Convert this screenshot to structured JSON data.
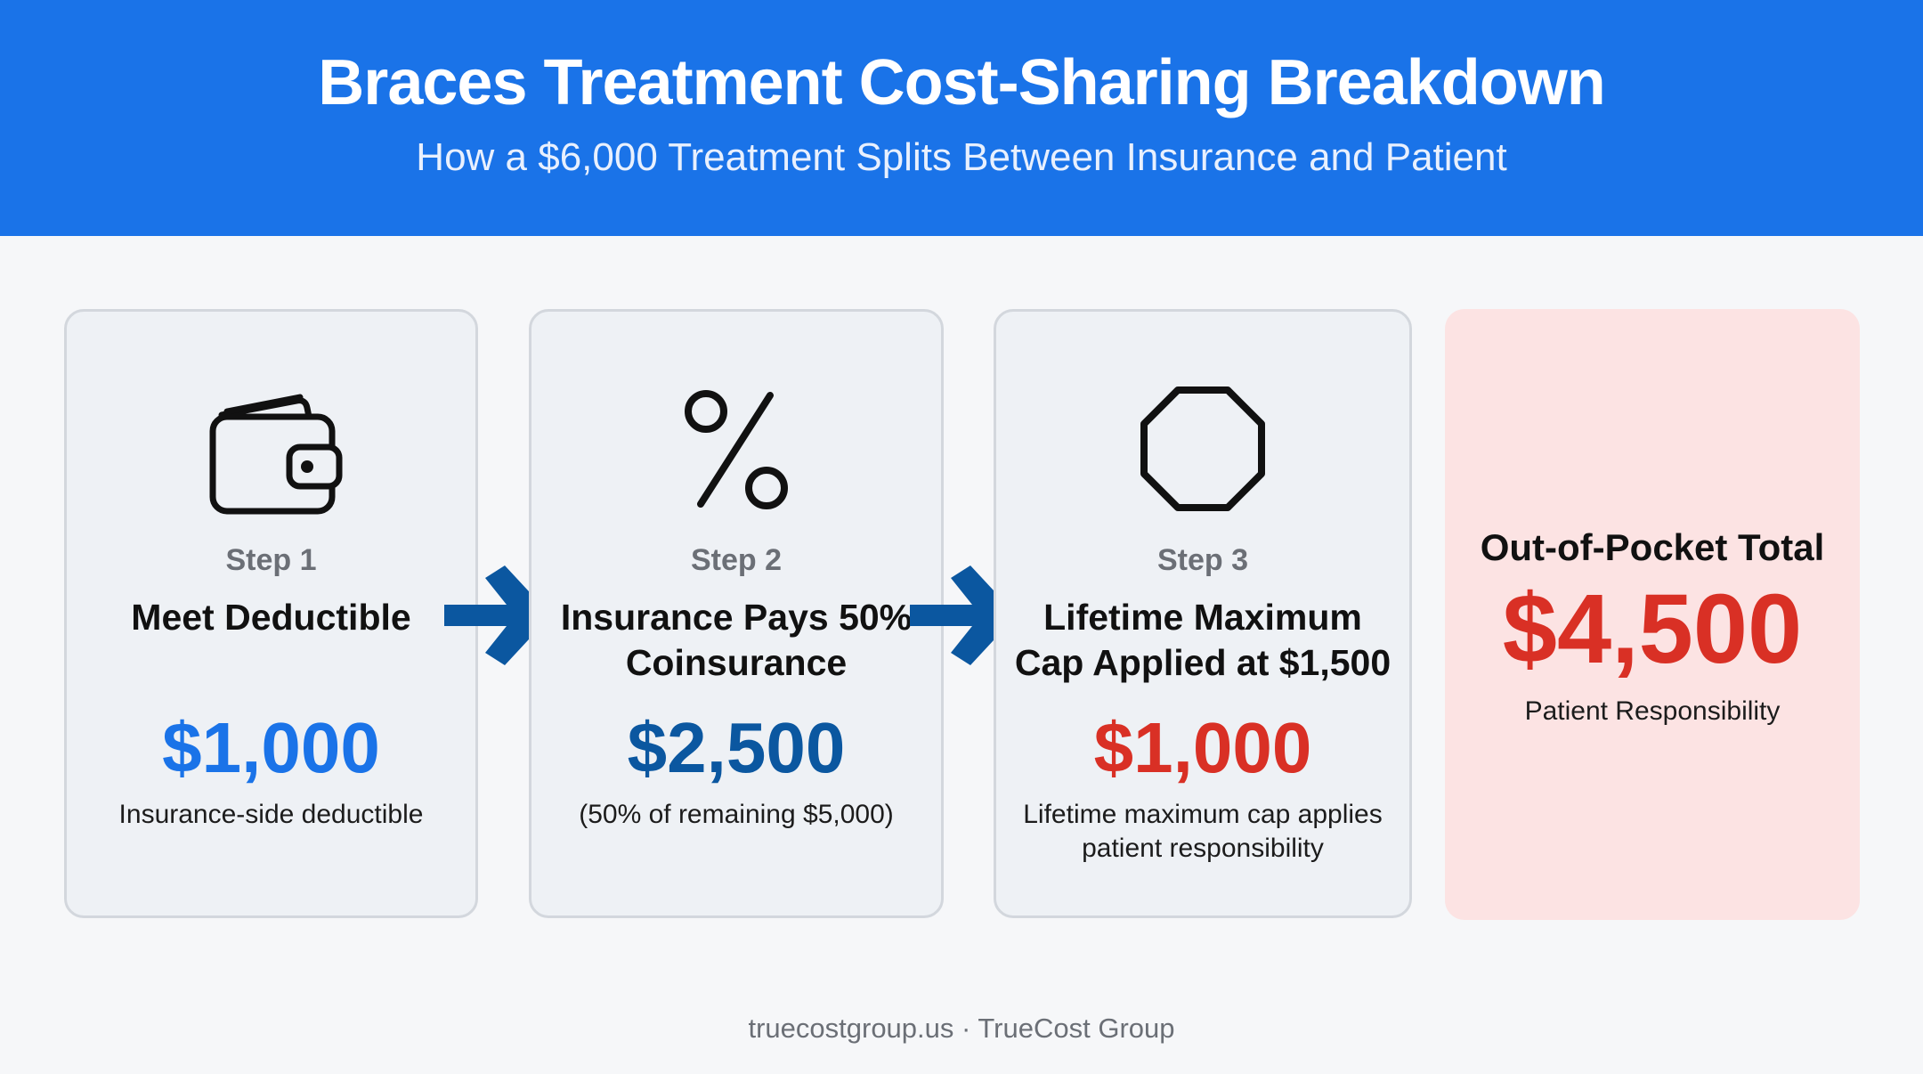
{
  "header": {
    "title": "Braces Treatment Cost-Sharing Breakdown",
    "subtitle": "How a $6,000 Treatment Splits Between Insurance and Patient",
    "background_color": "#1a73e8"
  },
  "steps": [
    {
      "icon": "wallet-icon",
      "step_label": "Step 1",
      "heading": "Meet Deductible",
      "amount": "$1,000",
      "amount_color": "#1a73e8",
      "description": "Insurance-side deductible"
    },
    {
      "icon": "percent-icon",
      "step_label": "Step 2",
      "heading": "Insurance Pays 50% Coinsurance",
      "amount": "$2,500",
      "amount_color": "#0b57a0",
      "description": "(50% of remaining $5,000)"
    },
    {
      "icon": "octagon-icon",
      "step_label": "Step 3",
      "heading": "Lifetime Maximum Cap Applied at $1,500",
      "amount": "$1,000",
      "amount_color": "#d93025",
      "description": "Lifetime maximum cap applies patient responsibility"
    }
  ],
  "total": {
    "label": "Out-of-Pocket Total",
    "value": "$4,500",
    "sub": "Patient Responsibility",
    "value_color": "#d93025",
    "background_color": "#fce3e3"
  },
  "footer": {
    "text": "truecostgroup.us · TrueCost Group"
  },
  "arrow_color": "#0b57a0"
}
